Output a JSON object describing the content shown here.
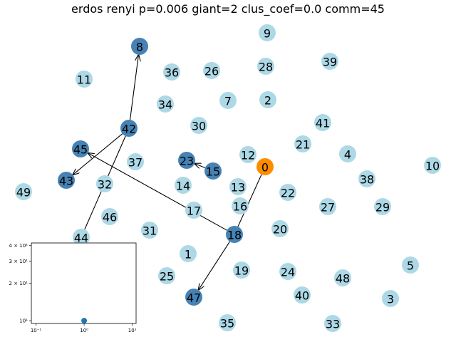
{
  "title": "erdos renyi p=0.006 giant=2 clus_coef=0.0 comm=45",
  "colors": {
    "light": "#add8e6",
    "dark": "#4682b4",
    "source": "#ff8c00",
    "inset_point": "#1f77b4"
  },
  "graph": {
    "nodes": [
      {
        "id": "0",
        "kind": "source"
      },
      {
        "id": "1",
        "kind": "light"
      },
      {
        "id": "2",
        "kind": "light"
      },
      {
        "id": "3",
        "kind": "light"
      },
      {
        "id": "4",
        "kind": "light"
      },
      {
        "id": "5",
        "kind": "light"
      },
      {
        "id": "7",
        "kind": "light"
      },
      {
        "id": "8",
        "kind": "dark"
      },
      {
        "id": "9",
        "kind": "light"
      },
      {
        "id": "10",
        "kind": "light"
      },
      {
        "id": "11",
        "kind": "light"
      },
      {
        "id": "12",
        "kind": "light"
      },
      {
        "id": "13",
        "kind": "light"
      },
      {
        "id": "14",
        "kind": "light"
      },
      {
        "id": "15",
        "kind": "dark"
      },
      {
        "id": "16",
        "kind": "light"
      },
      {
        "id": "17",
        "kind": "light"
      },
      {
        "id": "18",
        "kind": "dark"
      },
      {
        "id": "19",
        "kind": "light"
      },
      {
        "id": "20",
        "kind": "light"
      },
      {
        "id": "21",
        "kind": "light"
      },
      {
        "id": "22",
        "kind": "light"
      },
      {
        "id": "23",
        "kind": "dark"
      },
      {
        "id": "24",
        "kind": "light"
      },
      {
        "id": "25",
        "kind": "light"
      },
      {
        "id": "26",
        "kind": "light"
      },
      {
        "id": "27",
        "kind": "light"
      },
      {
        "id": "28",
        "kind": "light"
      },
      {
        "id": "29",
        "kind": "light"
      },
      {
        "id": "30",
        "kind": "light"
      },
      {
        "id": "31",
        "kind": "light"
      },
      {
        "id": "32",
        "kind": "light"
      },
      {
        "id": "33",
        "kind": "light"
      },
      {
        "id": "34",
        "kind": "light"
      },
      {
        "id": "35",
        "kind": "light"
      },
      {
        "id": "36",
        "kind": "light"
      },
      {
        "id": "37",
        "kind": "light"
      },
      {
        "id": "38",
        "kind": "light"
      },
      {
        "id": "39",
        "kind": "light"
      },
      {
        "id": "40",
        "kind": "light"
      },
      {
        "id": "41",
        "kind": "light"
      },
      {
        "id": "42",
        "kind": "dark"
      },
      {
        "id": "43",
        "kind": "dark"
      },
      {
        "id": "44",
        "kind": "light"
      },
      {
        "id": "45",
        "kind": "dark"
      },
      {
        "id": "46",
        "kind": "light"
      },
      {
        "id": "47",
        "kind": "dark"
      },
      {
        "id": "48",
        "kind": "light"
      },
      {
        "id": "49",
        "kind": "light"
      }
    ],
    "edges": [
      {
        "from": "0",
        "to": "18",
        "arrow": false
      },
      {
        "from": "18",
        "to": "47",
        "arrow": true
      },
      {
        "from": "18",
        "to": "45",
        "arrow": true
      },
      {
        "from": "42",
        "to": "8",
        "arrow": true
      },
      {
        "from": "42",
        "to": "43",
        "arrow": true
      },
      {
        "from": "42",
        "to": "44",
        "arrow": false
      },
      {
        "from": "15",
        "to": "23",
        "arrow": true
      }
    ]
  },
  "inset": {
    "x_ticks": [
      "10⁻¹",
      "10⁰",
      "10¹"
    ],
    "y_ticks": [
      "10¹",
      "2 × 10¹",
      "3 × 10¹",
      "4 × 10¹"
    ]
  },
  "chart_data": {
    "type": "scatter",
    "x_scale": "log",
    "y_scale": "log",
    "xlim": [
      0.08,
      12
    ],
    "ylim": [
      9.5,
      42
    ],
    "x": [
      1
    ],
    "y": [
      10
    ]
  }
}
